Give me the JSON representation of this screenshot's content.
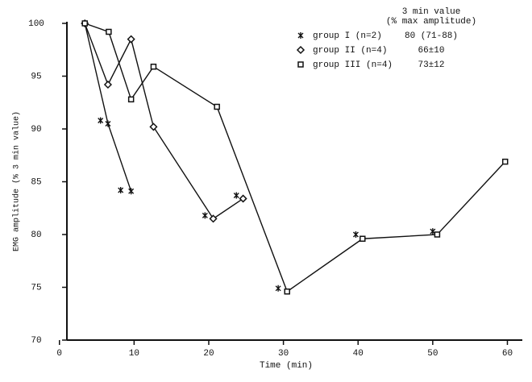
{
  "chart_data": {
    "type": "line",
    "x_label": "Time (min)",
    "y_label": "EMG amplitude (% 3 min value)",
    "legend_header": [
      "3 min value",
      "(% max amplitude)"
    ],
    "xlim": [
      1,
      62
    ],
    "xticks": [
      0,
      10,
      20,
      30,
      40,
      50,
      60
    ],
    "ylim": [
      70,
      100
    ],
    "yticks": [
      70,
      75,
      80,
      85,
      90,
      95,
      100
    ],
    "series": [
      {
        "name": "group I (n=2)",
        "stat": "80 (71-88)",
        "marker": "asterisk",
        "color": "#111111",
        "x": [
          3.4,
          6.5,
          9.6
        ],
        "values": [
          100,
          90.5,
          84.1
        ],
        "marker_x": [
          5.5,
          8.2,
          19.5,
          23.7,
          29.3,
          39.7,
          50
        ],
        "marker_values": [
          90.8,
          84.2,
          81.8,
          83.7,
          74.9,
          80,
          80.3
        ]
      },
      {
        "name": "group II (n=4)",
        "stat": "66±10",
        "marker": "diamond",
        "color": "#111111",
        "x": [
          3.4,
          6.5,
          9.6,
          12.6,
          20.6,
          24.6
        ],
        "values": [
          100,
          94.2,
          98.5,
          90.2,
          81.5,
          83.4
        ]
      },
      {
        "name": "group III (n=4)",
        "stat": "73±12",
        "marker": "square",
        "color": "#111111",
        "x": [
          3.4,
          6.6,
          9.6,
          12.6,
          21.1,
          30.5,
          40.6,
          50.6,
          59.7
        ],
        "values": [
          100,
          99.2,
          92.8,
          95.9,
          92.1,
          74.6,
          79.6,
          80,
          86.9
        ]
      }
    ]
  }
}
